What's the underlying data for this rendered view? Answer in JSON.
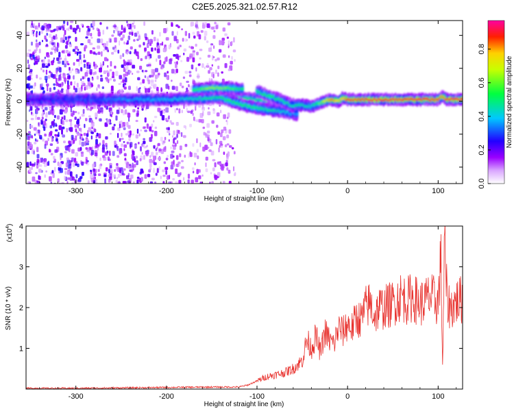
{
  "title": "C2E5.2025.321.02.57.R12",
  "chart_data": [
    {
      "type": "heatmap",
      "xlabel": "Height of straight line (km)",
      "ylabel": "Frequency (Hz)",
      "xlim": [
        -355,
        127
      ],
      "ylim": [
        -50,
        49
      ],
      "xticks": [
        -300,
        -200,
        -100,
        0,
        100
      ],
      "yticks": [
        -40,
        -20,
        0,
        20,
        40
      ],
      "colorbar": {
        "label": "Normalized spectral amplitude",
        "range": [
          0,
          0.97
        ],
        "ticks": [
          0.0,
          0.2,
          0.4,
          0.6,
          0.8
        ],
        "tick_labels": [
          "0.0",
          "0.2",
          "0.4",
          "0.6",
          "0.8"
        ],
        "colormap": [
          "#ffffff",
          "#b300ff",
          "#0000ff",
          "#00ffff",
          "#00ff00",
          "#ffff00",
          "#ff0000",
          "#ff00aa"
        ]
      },
      "ridges": [
        {
          "x": [
            -355,
            -300,
            -250,
            -200,
            -150,
            -120,
            -100,
            -80,
            -60,
            -40,
            -25,
            -18,
            -10,
            -5,
            0,
            50,
            100,
            105,
            110,
            127
          ],
          "y": [
            1,
            1,
            1,
            1,
            2,
            2,
            1,
            0,
            -2,
            -3,
            0,
            1,
            0,
            2,
            1,
            1,
            1,
            3,
            1,
            1
          ],
          "amplitude": [
            0.25,
            0.3,
            0.35,
            0.4,
            0.5,
            0.55,
            0.5,
            0.55,
            0.5,
            0.45,
            0.7,
            0.85,
            0.75,
            0.8,
            0.9,
            0.9,
            0.9,
            0.85,
            0.9,
            0.9
          ]
        },
        {
          "x": [
            -170,
            -150,
            -130,
            -115
          ],
          "y": [
            7,
            8,
            8,
            7
          ],
          "amplitude": [
            0.55,
            0.65,
            0.6,
            0.5
          ]
        },
        {
          "x": [
            -135,
            -110,
            -90,
            -75,
            -65,
            -55
          ],
          "y": [
            1,
            -3,
            -5,
            -6,
            -7,
            -8
          ],
          "amplitude": [
            0.55,
            0.55,
            0.5,
            0.45,
            0.4,
            0.35
          ]
        },
        {
          "x": [
            -100,
            -85,
            -70,
            -60
          ],
          "y": [
            6,
            3,
            0,
            -3
          ],
          "amplitude": [
            0.5,
            0.55,
            0.5,
            0.45
          ]
        }
      ]
    },
    {
      "type": "line",
      "xlabel": "Height of straight line (km)",
      "ylabel": "SNR (10 * v/v)",
      "y_multiplier": "(x10",
      "y_multiplier_exp": "4",
      "y_multiplier_close": ")",
      "xlim": [
        -355,
        127
      ],
      "ylim": [
        0,
        4
      ],
      "xticks": [
        -300,
        -200,
        -100,
        0,
        100
      ],
      "yticks": [
        1,
        2,
        3,
        4
      ],
      "series": [
        {
          "color": "#e8322e",
          "x": [
            -355,
            -300,
            -250,
            -200,
            -150,
            -120,
            -110,
            -100,
            -90,
            -80,
            -70,
            -60,
            -50,
            -45,
            -40,
            -35,
            -30,
            -25,
            -20,
            -15,
            -10,
            -5,
            0,
            5,
            10,
            15,
            20,
            25,
            30,
            35,
            40,
            45,
            50,
            55,
            60,
            65,
            70,
            75,
            80,
            85,
            90,
            95,
            100,
            103,
            105,
            107,
            110,
            115,
            120,
            127
          ],
          "y": [
            0.02,
            0.02,
            0.03,
            0.04,
            0.05,
            0.05,
            0.1,
            0.2,
            0.3,
            0.35,
            0.4,
            0.5,
            0.7,
            1.2,
            1.0,
            1.3,
            0.9,
            1.4,
            1.2,
            1.1,
            1.5,
            1.4,
            1.6,
            1.5,
            1.75,
            1.7,
            2.0,
            2.1,
            1.8,
            2.0,
            2.0,
            2.05,
            2.1,
            2.2,
            2.3,
            2.15,
            2.25,
            2.2,
            2.1,
            2.15,
            2.25,
            2.2,
            2.1,
            3.2,
            0.5,
            3.6,
            2.1,
            2.0,
            2.15,
            2.2
          ]
        }
      ]
    }
  ]
}
